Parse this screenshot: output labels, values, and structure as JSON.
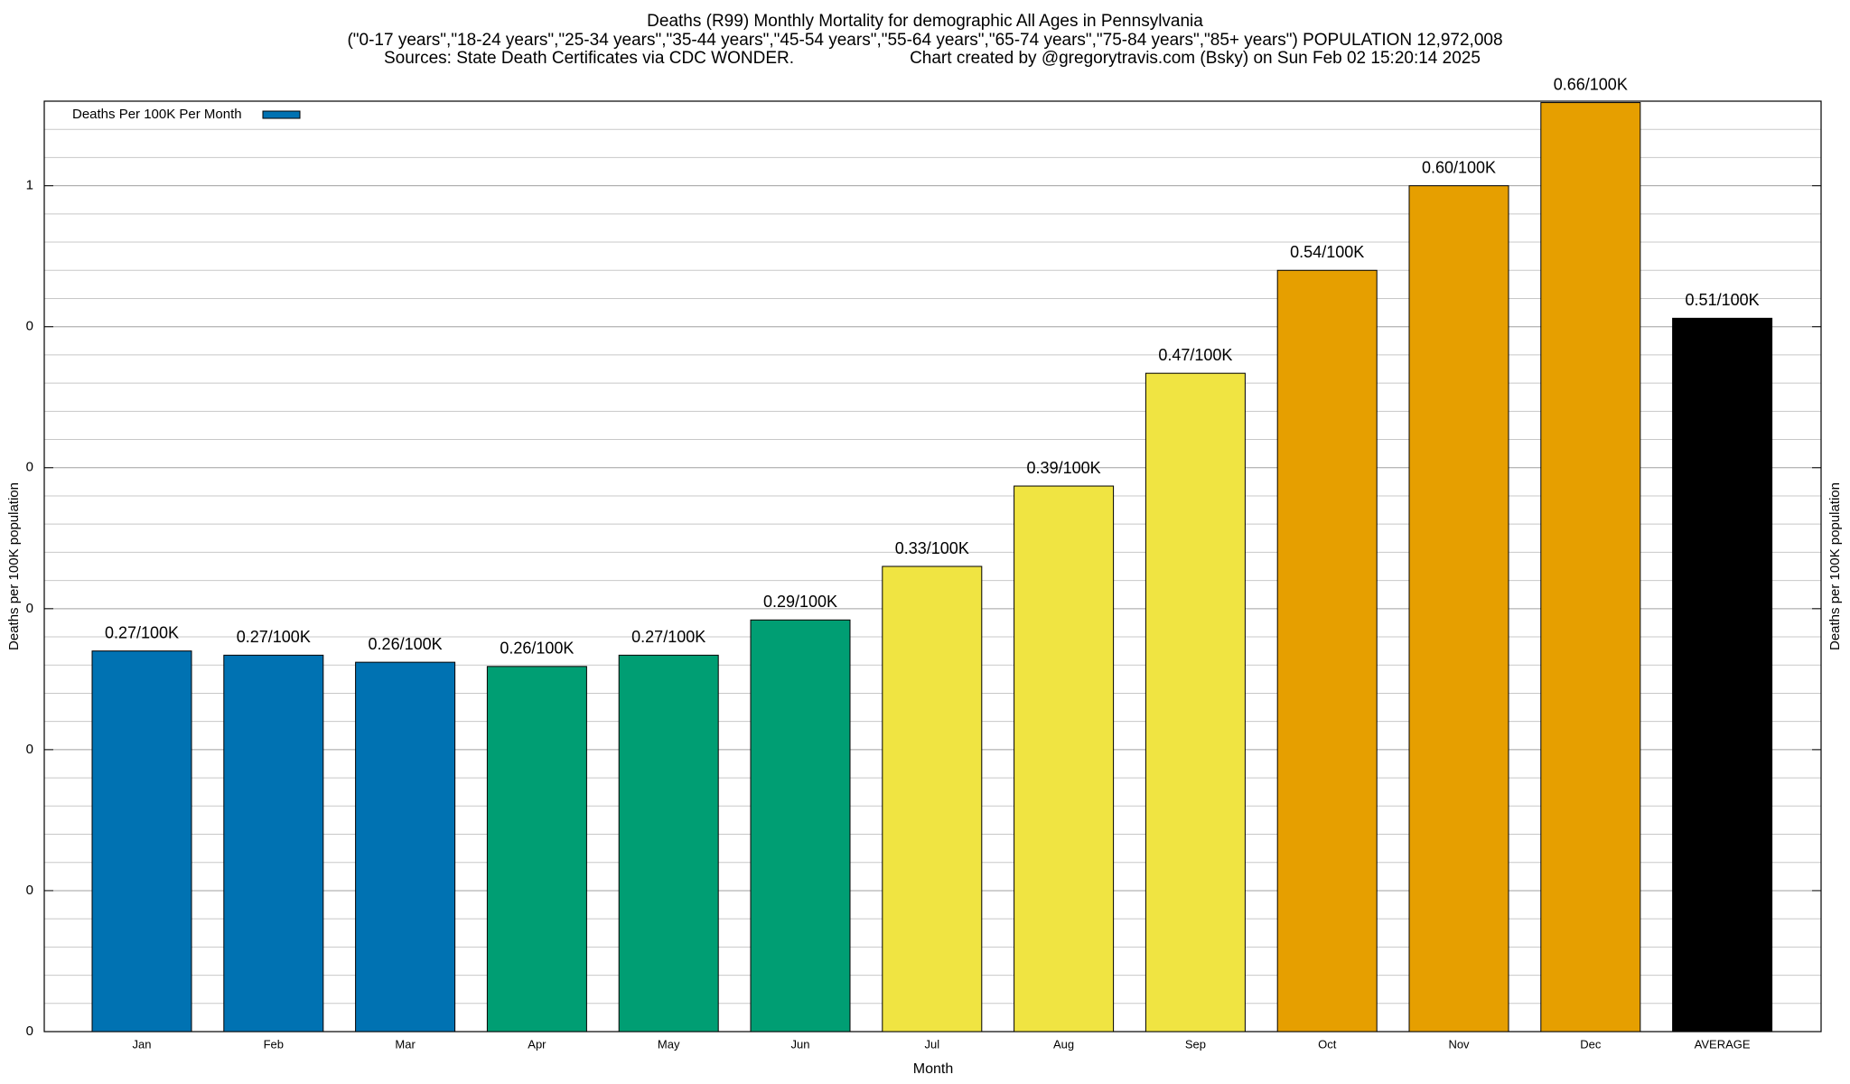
{
  "chart_data": {
    "type": "bar",
    "title": "Deaths (R99) Monthly Mortality for demographic All Ages in Pennsylvania",
    "subtitle": "(\"0-17 years\",\"18-24 years\",\"25-34 years\",\"35-44 years\",\"45-54 years\",\"55-64 years\",\"65-74 years\",\"75-84 years\",\"85+ years\") POPULATION 12,972,008",
    "sources": [
      "Sources: State Death Certificates via CDC WONDER.",
      "Chart created by @gregorytravis.com (Bsky) on Sun Feb 02 15:20:14 2025"
    ],
    "x_label": "Month",
    "y_label": "Deaths per 100K population",
    "y2_label": "Deaths per 100K population",
    "categories": [
      "Jan",
      "Feb",
      "Mar",
      "Apr",
      "May",
      "Jun",
      "Jul",
      "Aug",
      "Sep",
      "Oct",
      "Nov",
      "Dec",
      "AVERAGE"
    ],
    "series": [
      {
        "name": "Deaths Per 100K Per Month",
        "color": "#0072b2",
        "colors": [
          "#0072b2",
          "#0072b2",
          "#0072b2",
          "#009e73",
          "#009e73",
          "#009e73",
          "#f0e442",
          "#f0e442",
          "#f0e442",
          "#e69f00",
          "#e69f00",
          "#e69f00",
          "#000000"
        ],
        "values": [
          0.27,
          0.267,
          0.262,
          0.259,
          0.267,
          0.292,
          0.33,
          0.387,
          0.467,
          0.54,
          0.6,
          0.659,
          0.506
        ],
        "value_labels": [
          "0.27/100K",
          "0.27/100K",
          "0.26/100K",
          "0.26/100K",
          "0.27/100K",
          "0.29/100K",
          "0.33/100K",
          "0.39/100K",
          "0.47/100K",
          "0.54/100K",
          "0.60/100K",
          "0.66/100K",
          "0.51/100K"
        ]
      }
    ],
    "ylim": [
      0,
      0.66
    ],
    "yticks": [
      0,
      {
        "value": 0.1,
        "label": "0"
      },
      {
        "value": 0.2,
        "label": "0"
      },
      {
        "value": 0.3,
        "label": "0"
      },
      {
        "value": 0.4,
        "label": "0"
      },
      {
        "value": 0.5,
        "label": "0"
      },
      {
        "value": 0.6,
        "label": "1"
      }
    ],
    "yminorticks": [
      0.02,
      0.04,
      0.06,
      0.08,
      0.12,
      0.14,
      0.16,
      0.18,
      0.22,
      0.24,
      0.26,
      0.28,
      0.32,
      0.34,
      0.36,
      0.38,
      0.42,
      0.44,
      0.46,
      0.48,
      0.52,
      0.54,
      0.56,
      0.58,
      0.62,
      0.64
    ],
    "grid": true,
    "legend": "upper left"
  }
}
